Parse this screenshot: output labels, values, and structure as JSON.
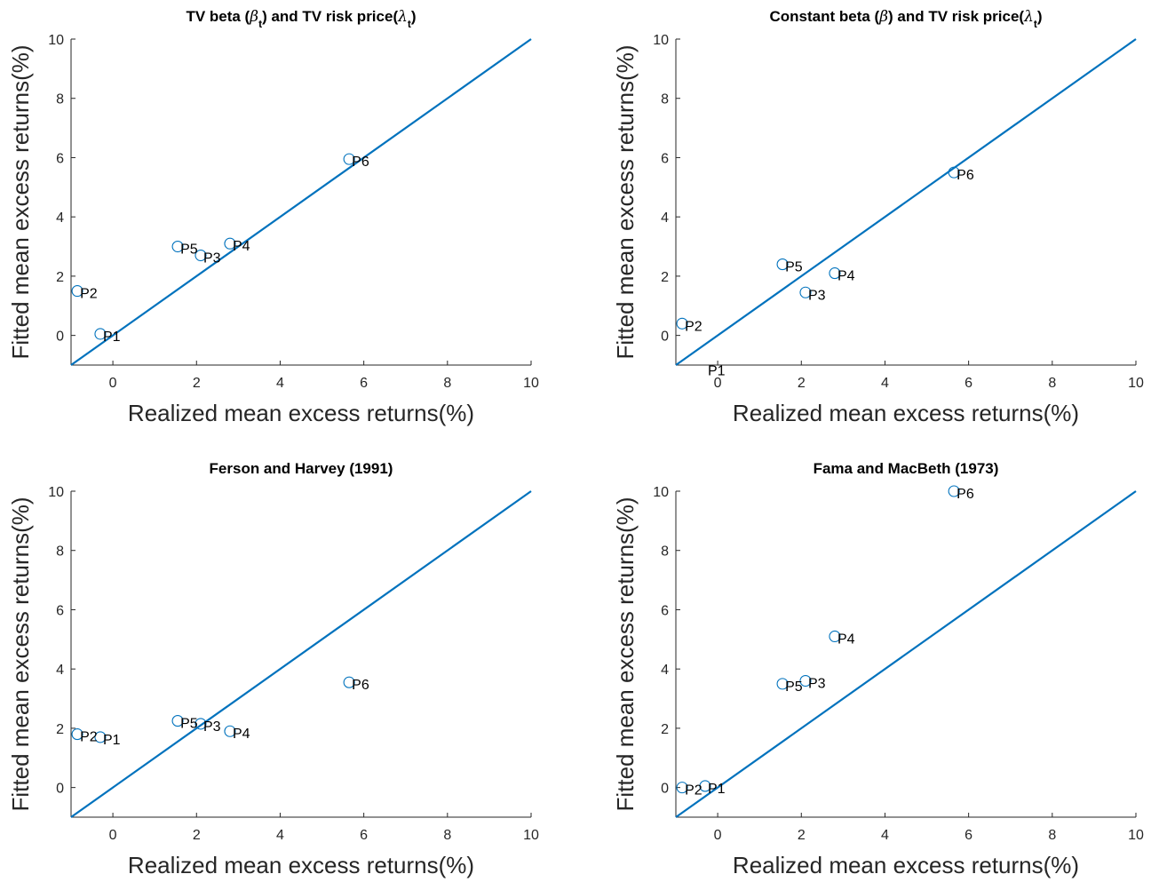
{
  "figure": {
    "colors": {
      "line": "#0072BD",
      "marker": "#0072BD",
      "axis": "#262626",
      "text": "#000000"
    }
  },
  "chart_data": [
    {
      "type": "scatter",
      "title": "TV beta (β_t) and TV risk price(λ_t)",
      "title_parts": [
        {
          "t": "TV beta ("
        },
        {
          "t": "β",
          "italic": true
        },
        {
          "t": "t",
          "sub": true
        },
        {
          "t": ") and TV risk price("
        },
        {
          "t": "λ",
          "italic": true
        },
        {
          "t": "t",
          "sub": true
        },
        {
          "t": ")"
        }
      ],
      "xlabel": "Realized mean excess returns(%)",
      "ylabel": "Fitted mean excess returns(%)",
      "xlim": [
        -1,
        10
      ],
      "ylim": [
        -1,
        10
      ],
      "xticks": [
        0,
        2,
        4,
        6,
        8,
        10
      ],
      "yticks": [
        0,
        2,
        4,
        6,
        8,
        10
      ],
      "reference_line": {
        "from": [
          -1,
          -1
        ],
        "to": [
          10,
          10
        ]
      },
      "points": [
        {
          "label": "P1",
          "x": -0.3,
          "y": 0.05
        },
        {
          "label": "P2",
          "x": -0.85,
          "y": 1.5
        },
        {
          "label": "P3",
          "x": 2.1,
          "y": 2.7
        },
        {
          "label": "P4",
          "x": 2.8,
          "y": 3.1
        },
        {
          "label": "P5",
          "x": 1.55,
          "y": 3.0
        },
        {
          "label": "P6",
          "x": 5.65,
          "y": 5.95
        }
      ]
    },
    {
      "type": "scatter",
      "title": "Constant beta (β) and TV risk price(λ_t)",
      "title_parts": [
        {
          "t": "Constant beta ("
        },
        {
          "t": "β",
          "italic": true
        },
        {
          "t": ") and TV risk price("
        },
        {
          "t": "λ",
          "italic": true
        },
        {
          "t": "t",
          "sub": true
        },
        {
          "t": ")"
        }
      ],
      "xlabel": "Realized mean excess returns(%)",
      "ylabel": "Fitted mean excess returns(%)",
      "xlim": [
        -1,
        10
      ],
      "ylim": [
        -1,
        10
      ],
      "xticks": [
        0,
        2,
        4,
        6,
        8,
        10
      ],
      "yticks": [
        0,
        2,
        4,
        6,
        8,
        10
      ],
      "reference_line": {
        "from": [
          -1,
          -1
        ],
        "to": [
          10,
          10
        ]
      },
      "points": [
        {
          "label": "P1",
          "x": -0.3,
          "y": -1.1
        },
        {
          "label": "P2",
          "x": -0.85,
          "y": 0.4
        },
        {
          "label": "P3",
          "x": 2.1,
          "y": 1.45
        },
        {
          "label": "P4",
          "x": 2.8,
          "y": 2.1
        },
        {
          "label": "P5",
          "x": 1.55,
          "y": 2.4
        },
        {
          "label": "P6",
          "x": 5.65,
          "y": 5.5
        }
      ]
    },
    {
      "type": "scatter",
      "title": "Ferson and Harvey (1991)",
      "title_parts": [
        {
          "t": "Ferson and Harvey (1991)"
        }
      ],
      "xlabel": "Realized mean excess returns(%)",
      "ylabel": "Fitted mean excess returns(%)",
      "xlim": [
        -1,
        10
      ],
      "ylim": [
        -1,
        10
      ],
      "xticks": [
        0,
        2,
        4,
        6,
        8,
        10
      ],
      "yticks": [
        0,
        2,
        4,
        6,
        8,
        10
      ],
      "reference_line": {
        "from": [
          -1,
          -1
        ],
        "to": [
          10,
          10
        ]
      },
      "points": [
        {
          "label": "P1",
          "x": -0.3,
          "y": 1.7
        },
        {
          "label": "P2",
          "x": -0.85,
          "y": 1.8
        },
        {
          "label": "P3",
          "x": 2.1,
          "y": 2.15
        },
        {
          "label": "P4",
          "x": 2.8,
          "y": 1.9
        },
        {
          "label": "P5",
          "x": 1.55,
          "y": 2.25
        },
        {
          "label": "P6",
          "x": 5.65,
          "y": 3.55
        }
      ]
    },
    {
      "type": "scatter",
      "title": "Fama and MacBeth (1973)",
      "title_parts": [
        {
          "t": "Fama and MacBeth (1973)"
        }
      ],
      "xlabel": "Realized mean excess returns(%)",
      "ylabel": "Fitted mean excess returns(%)",
      "xlim": [
        -1,
        10
      ],
      "ylim": [
        -1,
        10
      ],
      "xticks": [
        0,
        2,
        4,
        6,
        8,
        10
      ],
      "yticks": [
        0,
        2,
        4,
        6,
        8,
        10
      ],
      "reference_line": {
        "from": [
          -1,
          -1
        ],
        "to": [
          10,
          10
        ]
      },
      "points": [
        {
          "label": "P1",
          "x": -0.3,
          "y": 0.05
        },
        {
          "label": "P2",
          "x": -0.85,
          "y": 0.0
        },
        {
          "label": "P3",
          "x": 2.1,
          "y": 3.6
        },
        {
          "label": "P4",
          "x": 2.8,
          "y": 5.1
        },
        {
          "label": "P5",
          "x": 1.55,
          "y": 3.5
        },
        {
          "label": "P6",
          "x": 5.65,
          "y": 10.0
        }
      ]
    }
  ]
}
